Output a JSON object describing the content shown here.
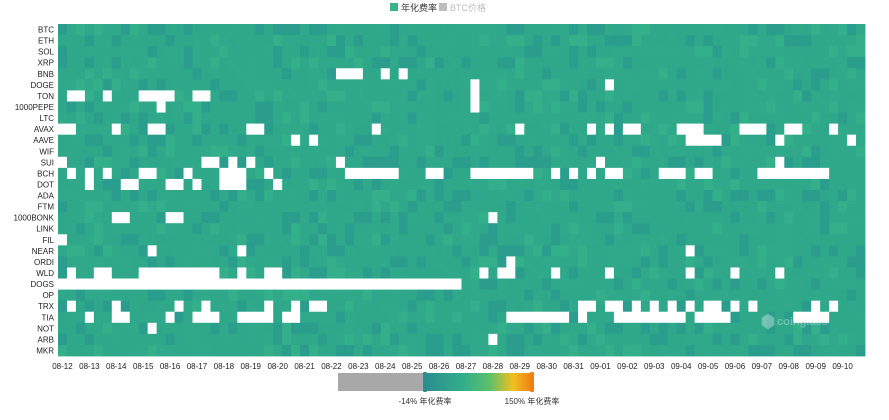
{
  "legend": {
    "funding_label": "年化费率",
    "btc_label": "BTC价格",
    "funding_color": "#3ab38a",
    "btc_color": "#bdbdbd"
  },
  "watermark": "coinglass",
  "chart_data": {
    "type": "heatmap",
    "title": "",
    "xlabel": "",
    "ylabel": "",
    "rows": [
      "BTC",
      "ETH",
      "SOL",
      "XRP",
      "BNB",
      "DOGE",
      "TON",
      "1000PEPE",
      "LTC",
      "AVAX",
      "AAVE",
      "WIF",
      "SUI",
      "BCH",
      "DOT",
      "ADA",
      "FTM",
      "1000BONK",
      "LINK",
      "FIL",
      "NEAR",
      "ORDI",
      "WLD",
      "DOGS",
      "OP",
      "TRX",
      "TIA",
      "NOT",
      "ARB",
      "MKR"
    ],
    "x_ticks": [
      "08-12",
      "08-13",
      "08-14",
      "08-15",
      "08-16",
      "08-17",
      "08-18",
      "08-19",
      "08-20",
      "08-21",
      "08-22",
      "08-23",
      "08-24",
      "08-25",
      "08-26",
      "08-27",
      "08-28",
      "08-29",
      "08-30",
      "08-31",
      "09-01",
      "09-02",
      "09-03",
      "09-04",
      "09-05",
      "09-06",
      "09-07",
      "09-08",
      "09-09",
      "09-10"
    ],
    "columns_per_day": 3,
    "value_unit": "年化费率",
    "color_scale": {
      "min": -14,
      "max": 150,
      "min_label": "-14% 年化费率",
      "max_label": "150% 年化费率",
      "stops": [
        "#2a8f8f",
        "#32ad8a",
        "#5cc06c",
        "#f0c020",
        "#f08010"
      ],
      "negative_color": "#ffffff",
      "slider_background": "#a8a8a8",
      "handle_color": "#2a8f8f"
    },
    "typical_value": 10.95,
    "negative_cells": {
      "TON": [
        1,
        2,
        5,
        9,
        10,
        11,
        12,
        15,
        16,
        46
      ],
      "BNB": [
        31,
        32,
        33,
        36,
        38
      ],
      "AVAX": [
        0,
        1,
        6,
        10,
        11,
        21,
        22,
        35,
        51,
        59,
        61,
        63,
        64,
        69,
        70,
        71,
        76,
        77,
        78,
        81,
        82,
        86
      ],
      "BCH": [
        1,
        3,
        5,
        9,
        10,
        14,
        18,
        19,
        20,
        23,
        32,
        33,
        34,
        35,
        36,
        37,
        41,
        42,
        46,
        47,
        48,
        49,
        50,
        51,
        52,
        55,
        57,
        59,
        61,
        62,
        67,
        68,
        69,
        71,
        72,
        78,
        79,
        80,
        81,
        82,
        83,
        84,
        85
      ],
      "DOGS": [
        0,
        1,
        2,
        3,
        4,
        5,
        6,
        7,
        8,
        9,
        10,
        11,
        12,
        13,
        14,
        15,
        16,
        17,
        18,
        19,
        20,
        21,
        22,
        23,
        24,
        25,
        26,
        27,
        28,
        29,
        30,
        31,
        32,
        33,
        34,
        35,
        36,
        37,
        38,
        39,
        40,
        41,
        42,
        43,
        44
      ],
      "WLD": [
        1,
        4,
        5,
        9,
        10,
        11,
        12,
        13,
        14,
        15,
        16,
        17,
        20,
        23,
        24,
        47,
        49,
        50,
        55,
        61,
        70,
        75,
        80
      ],
      "TRX": [
        1,
        6,
        13,
        16,
        23,
        26,
        28,
        29,
        58,
        59,
        61,
        62,
        64,
        66,
        68,
        70,
        72,
        73,
        75,
        77,
        84,
        86
      ],
      "TIA": [
        3,
        6,
        7,
        12,
        15,
        16,
        17,
        20,
        21,
        22,
        23,
        25,
        26,
        50,
        51,
        52,
        53,
        54,
        55,
        56,
        58,
        62,
        63,
        64,
        65,
        66,
        67,
        68,
        69,
        71,
        72,
        73,
        74,
        82,
        83,
        84,
        85
      ],
      "DOT": [
        3,
        7,
        8,
        12,
        13,
        15,
        18,
        19,
        20,
        24
      ],
      "1000PEPE": [
        11,
        46
      ],
      "AAVE": [
        26,
        28,
        70,
        71,
        72,
        73,
        80,
        88
      ],
      "SUI": [
        0,
        16,
        17,
        19,
        21,
        31,
        60,
        80
      ],
      "1000BONK": [
        6,
        7,
        12,
        13,
        48
      ],
      "NEAR": [
        10,
        20,
        70
      ],
      "ORDI": [
        50
      ],
      "DOGE": [
        46,
        61
      ],
      "NOT": [
        10
      ],
      "ARB": [
        48
      ],
      "FIL": [
        0
      ],
      "ETH": [],
      "BTC": []
    }
  }
}
